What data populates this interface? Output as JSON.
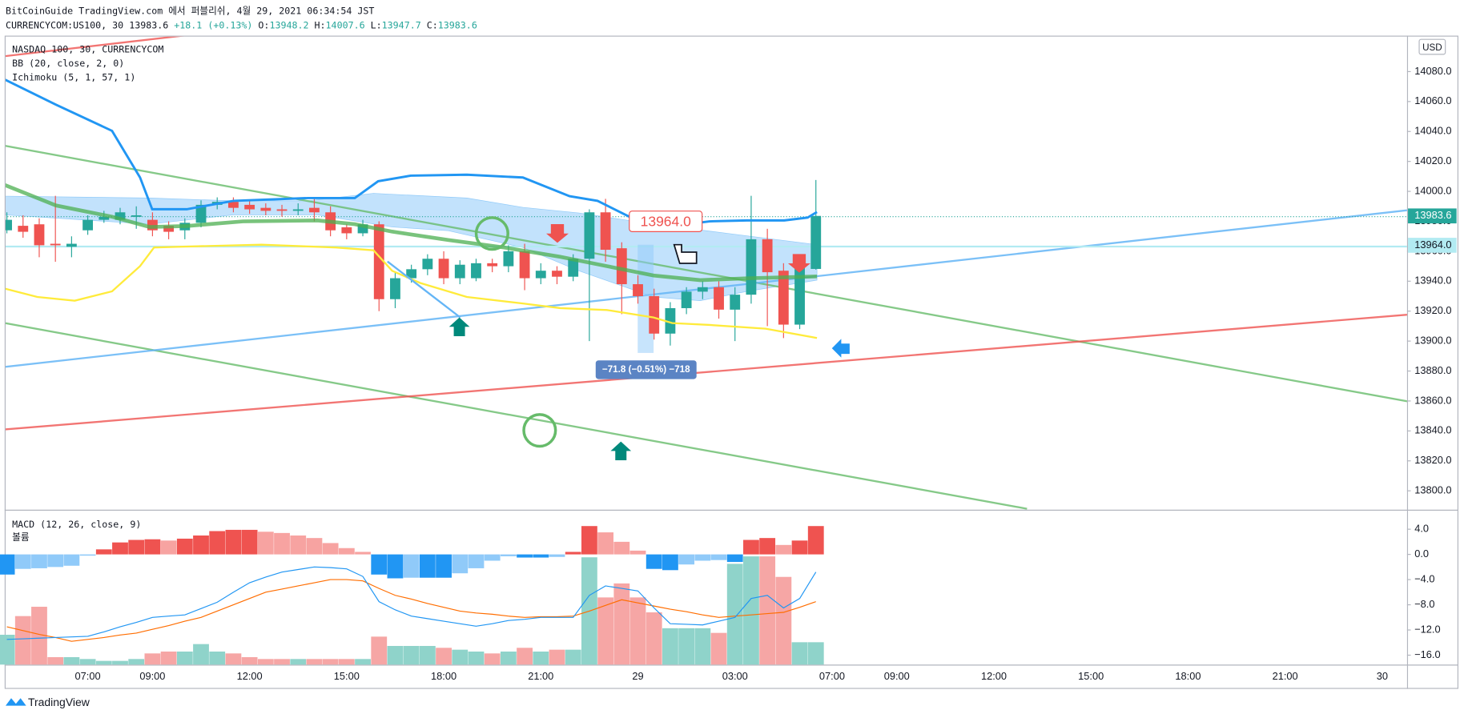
{
  "header": {
    "publisher": "BitCoinGuide TradingView.com 에서 퍼블리쉬, 4월 29, 2021 06:34:54 JST",
    "symbol": "CURRENCYCOM:US100, 30",
    "last": "13983.6",
    "change": "+18.1 (+0.13%)",
    "ohlc": [
      {
        "label": "O:",
        "value": "13948.2"
      },
      {
        "label": "H:",
        "value": "14007.6"
      },
      {
        "label": "L:",
        "value": "13947.7"
      },
      {
        "label": "C:",
        "value": "13983.6"
      }
    ]
  },
  "legends": {
    "main": [
      "NASDAQ 100, 30, CURRENCYCOM",
      "BB (20, close, 2, 0)",
      "Ichimoku (5, 1, 57, 1)"
    ],
    "macd": "MACD (12, 26, close, 9)",
    "volume": "볼륨"
  },
  "footer": "TradingView",
  "chart_data": [
    {
      "type": "candlestick",
      "currency": "USD",
      "categories": [
        null,
        null,
        null,
        null,
        null,
        "07:00",
        null,
        null,
        null,
        "09:00",
        null,
        null,
        null,
        null,
        null,
        "12:00",
        null,
        null,
        null,
        null,
        null,
        "15:00",
        null,
        null,
        null,
        null,
        null,
        "18:00",
        null,
        null,
        null,
        null,
        null,
        "21:00",
        null,
        null,
        null,
        null,
        null,
        "29",
        null,
        null,
        null,
        null,
        null,
        "03:00",
        null,
        null,
        null,
        null,
        null,
        "07:00",
        null,
        null,
        null,
        "09:00",
        null,
        null,
        null,
        null,
        null,
        "12:00",
        null,
        null,
        null,
        null,
        null,
        "15:00",
        null,
        null,
        null,
        null,
        null,
        "18:00",
        null,
        null,
        null,
        null,
        null,
        "21:00",
        null,
        null,
        null,
        null,
        null,
        "30",
        null
      ],
      "open": [
        13974,
        13977,
        13978,
        13965,
        13963,
        13974,
        13981,
        13981,
        13983,
        13981,
        13977,
        13974,
        13979,
        13991,
        13993,
        13991,
        13989,
        13988,
        13987,
        13989,
        13986,
        13976,
        13972,
        13978,
        13928,
        13942,
        13948,
        13955,
        13942,
        13942,
        13952,
        13950,
        13960,
        13942,
        13947,
        13943,
        13955,
        13986,
        13962,
        13938,
        13930,
        13905,
        13922,
        13933,
        13936,
        13921,
        13931,
        13968,
        13947,
        13911,
        13948.2,
        null,
        null,
        null,
        null,
        null,
        null,
        null,
        null,
        null,
        null,
        null,
        null,
        null,
        null,
        null,
        null,
        null,
        null,
        null,
        null,
        null,
        null,
        null,
        null,
        null,
        null,
        null,
        null,
        null,
        null,
        null,
        null,
        null,
        null,
        null,
        null
      ],
      "high": [
        13986,
        13984,
        13982,
        13997,
        13970,
        13984,
        13987,
        13989,
        13990,
        13986,
        13980,
        13982,
        13994,
        13996,
        13996,
        13994,
        13992,
        13991,
        13992,
        13995,
        13990,
        13978,
        13981,
        13980,
        13946,
        13951,
        13958,
        13960,
        13954,
        13955,
        13955,
        13964,
        13965,
        13952,
        13950,
        13958,
        13988,
        13995,
        13966,
        13944,
        13935,
        13926,
        13936,
        13940,
        13940,
        13936,
        13997,
        13975,
        13952,
        13958,
        14007.6,
        null,
        null,
        null,
        null,
        null,
        null,
        null,
        null,
        null,
        null,
        null,
        null,
        null,
        null,
        null,
        null,
        null,
        null,
        null,
        null,
        null,
        null,
        null,
        null,
        null,
        null,
        null,
        null,
        null,
        null,
        null,
        null,
        null,
        null,
        null,
        null
      ],
      "low": [
        13972,
        13969,
        13956,
        13953,
        13956,
        13971,
        13979,
        13978,
        13975,
        13970,
        13968,
        13968,
        13976,
        13988,
        13986,
        13985,
        13984,
        13983,
        13984,
        13980,
        13970,
        13968,
        13970,
        13920,
        13922,
        13939,
        13944,
        13938,
        13938,
        13940,
        13946,
        13946,
        13934,
        13938,
        13938,
        13940,
        13900,
        13953,
        13918,
        13925,
        13901,
        13897,
        13918,
        13928,
        13915,
        13900,
        13925,
        13910,
        13902,
        13908,
        13947.7,
        null,
        null,
        null,
        null,
        null,
        null,
        null,
        null,
        null,
        null,
        null,
        null,
        null,
        null,
        null,
        null,
        null,
        null,
        null,
        null,
        null,
        null,
        null,
        null,
        null,
        null,
        null,
        null,
        null,
        null,
        null,
        null,
        null,
        null,
        null,
        null
      ],
      "close": [
        13981,
        13973,
        13964,
        13964,
        13965,
        13981,
        13983,
        13986,
        13984,
        13974,
        13973,
        13979,
        13991,
        13993,
        13989,
        13988,
        13987,
        13987,
        13988,
        13986,
        13974,
        13972,
        13978,
        13928,
        13942,
        13948,
        13955,
        13942,
        13951,
        13952,
        13950,
        13960,
        13942,
        13947,
        13943,
        13955,
        13986,
        13961,
        13938,
        13930,
        13905,
        13922,
        13933,
        13936,
        13921,
        13931,
        13968,
        13946,
        13911,
        13950,
        13983.6,
        null,
        null,
        null,
        null,
        null,
        null,
        null,
        null,
        null,
        null,
        null,
        null,
        null,
        null,
        null,
        null,
        null,
        null,
        null,
        null,
        null,
        null,
        null,
        null,
        null,
        null,
        null,
        null,
        null,
        null,
        null,
        null,
        null,
        null,
        null,
        null
      ],
      "colors": {
        "up": "#26a69a",
        "down": "#ef5350"
      },
      "ylim": [
        13788,
        14104
      ],
      "yticks": [
        {
          "value": 13800,
          "label": "13800.0"
        },
        {
          "value": 13820,
          "label": "13820.0"
        },
        {
          "value": 13840,
          "label": "13840.0"
        },
        {
          "value": 13860,
          "label": "13860.0"
        },
        {
          "value": 13880,
          "label": "13880.0"
        },
        {
          "value": 13900,
          "label": "13900.0"
        },
        {
          "value": 13920,
          "label": "13920.0"
        },
        {
          "value": 13940,
          "label": "13940.0"
        },
        {
          "value": 13960,
          "label": "13960.0"
        },
        {
          "value": 13980,
          "label": "13980.0"
        },
        {
          "value": 14000,
          "label": "14000.0"
        },
        {
          "value": 14020,
          "label": "14020.0"
        },
        {
          "value": 14040,
          "label": "14040.0"
        },
        {
          "value": 14060,
          "label": "14060.0"
        },
        {
          "value": 14080,
          "label": "14080.0"
        }
      ],
      "last_price": 13983.6,
      "line_price": {
        "value": 13964,
        "label": "13964.0"
      },
      "annotations": {
        "price_box": "13964.0",
        "measure": "−71.8 (−0.51%) −718"
      }
    },
    {
      "type": "macd",
      "histogram": [
        -3.2,
        -2.3,
        -2.2,
        -2.0,
        -1.8,
        -0.2,
        0.8,
        1.9,
        2.3,
        2.4,
        2.2,
        2.5,
        3.0,
        3.7,
        3.9,
        3.9,
        3.6,
        3.4,
        3.0,
        2.6,
        1.8,
        1.0,
        0.4,
        -3.2,
        -3.8,
        -3.7,
        -3.7,
        -3.7,
        -3.0,
        -2.2,
        -1.0,
        -0.3,
        -0.5,
        -0.5,
        -0.4,
        0.4,
        4.5,
        3.5,
        2.0,
        0.6,
        -2.3,
        -2.5,
        -1.6,
        -1.0,
        -0.9,
        -1.2,
        2.3,
        2.6,
        1.5,
        2.2,
        4.5,
        null,
        null,
        null,
        null,
        null,
        null,
        null,
        null,
        null,
        null,
        null,
        null,
        null,
        null,
        null,
        null,
        null,
        null,
        null,
        null,
        null,
        null,
        null,
        null,
        null,
        null,
        null,
        null,
        null,
        null,
        null,
        null,
        null,
        null,
        null,
        null
      ],
      "macd": [
        -13.5,
        -13.4,
        -13.3,
        -13.2,
        -13.1,
        -13.0,
        -12.3,
        -11.5,
        -10.8,
        -10.0,
        -9.8,
        -9.6,
        -8.6,
        -7.6,
        -6.0,
        -4.5,
        -3.6,
        -2.8,
        -2.4,
        -2.0,
        -2.1,
        -2.3,
        -3.5,
        -7.5,
        -8.8,
        -9.8,
        -10.2,
        -10.6,
        -11.0,
        -11.4,
        -11.0,
        -10.5,
        -10.3,
        -10.0,
        -10.0,
        -10.0,
        -6.5,
        -5.0,
        -5.4,
        -5.8,
        -8.5,
        -11.0,
        -11.1,
        -11.2,
        -10.6,
        -10.0,
        -7.0,
        -6.5,
        -8.5,
        -7.0,
        -2.8,
        null,
        null,
        null,
        null,
        null,
        null,
        null,
        null,
        null,
        null,
        null,
        null,
        null,
        null,
        null,
        null,
        null,
        null,
        null,
        null,
        null,
        null,
        null,
        null,
        null,
        null,
        null,
        null,
        null,
        null,
        null,
        null,
        null,
        null,
        null,
        null
      ],
      "signal": [
        -11.5,
        -12.1,
        -12.7,
        -13.2,
        -13.8,
        -13.5,
        -13.2,
        -12.8,
        -12.5,
        -11.9,
        -11.3,
        -10.6,
        -10.0,
        -9.0,
        -8.0,
        -7.0,
        -6.0,
        -5.5,
        -5.0,
        -4.5,
        -4.0,
        -4.0,
        -4.2,
        -5.4,
        -6.5,
        -7.1,
        -7.8,
        -8.4,
        -9.0,
        -9.3,
        -9.5,
        -9.8,
        -10.0,
        -9.9,
        -9.9,
        -9.8,
        -9.0,
        -8.1,
        -7.2,
        -7.7,
        -8.2,
        -8.7,
        -9.1,
        -9.6,
        -10.0,
        -9.8,
        -9.6,
        -9.4,
        -9.2,
        -8.4,
        -7.5,
        null,
        null,
        null,
        null,
        null,
        null,
        null,
        null,
        null,
        null,
        null,
        null,
        null,
        null,
        null,
        null,
        null,
        null,
        null,
        null,
        null,
        null,
        null,
        null,
        null,
        null,
        null,
        null,
        null,
        null,
        null,
        null,
        null,
        null,
        null,
        null
      ],
      "volume": [
        32,
        52,
        62,
        8,
        8,
        6,
        4,
        4,
        6,
        12,
        14,
        14,
        22,
        14,
        12,
        8,
        6,
        6,
        6,
        6,
        6,
        6,
        6,
        30,
        20,
        20,
        20,
        18,
        16,
        14,
        12,
        14,
        18,
        14,
        16,
        16,
        115,
        72,
        87,
        72,
        56,
        39,
        39,
        39,
        34,
        108,
        116,
        116,
        94,
        24,
        24,
        null,
        null,
        null,
        null,
        null,
        null,
        null,
        null,
        null,
        null,
        null,
        null,
        null,
        null,
        null,
        null,
        null,
        null,
        null,
        null,
        null,
        null,
        null,
        null,
        null,
        null,
        null,
        null,
        null,
        null,
        null,
        null,
        null,
        null,
        null,
        null
      ],
      "colors": {
        "macd": "#2196f3",
        "signal": "#ff6d00",
        "pos_rising": "#ef5350",
        "pos_falling": "#f7a3a1",
        "neg_falling": "#2196f3",
        "neg_rising": "#90caf9",
        "volume_up": "#8fd3ca",
        "volume_down": "#f6a6a5"
      },
      "ylim": [
        -17.5,
        6.8
      ],
      "yticks": [
        {
          "value": 4,
          "label": "4.0"
        },
        {
          "value": 0,
          "label": "0.0"
        },
        {
          "value": -4,
          "label": "−4.0"
        },
        {
          "value": -8,
          "label": "−8.0"
        },
        {
          "value": -12,
          "label": "−12.0"
        },
        {
          "value": -16,
          "label": "−16.0"
        }
      ]
    }
  ]
}
